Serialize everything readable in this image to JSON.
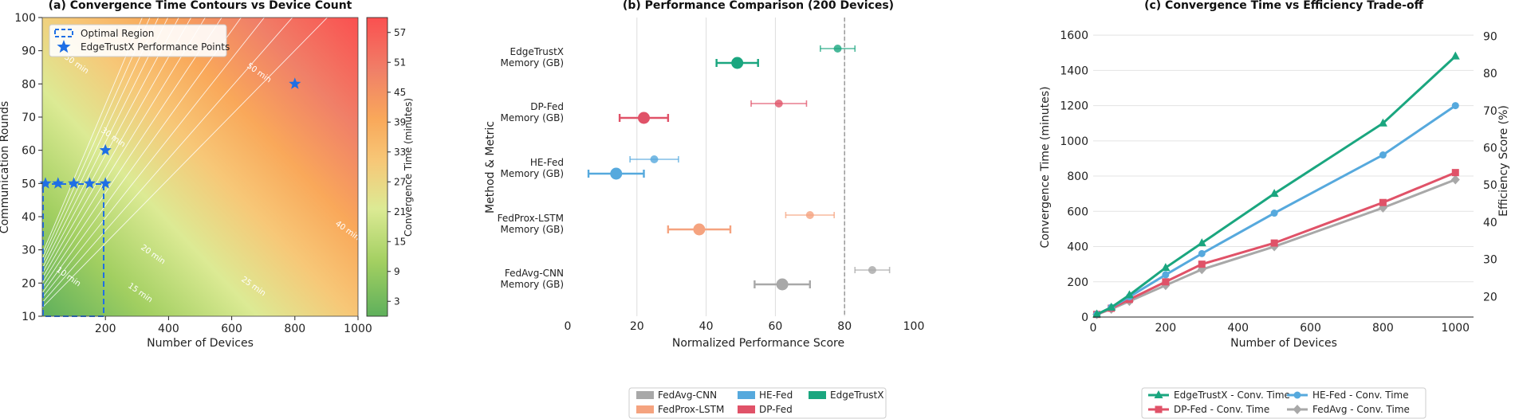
{
  "colors": {
    "edgetrustx": "#1aa67f",
    "dpfed": "#e05268",
    "hefed": "#56a9dd",
    "fedprox": "#f5a37f",
    "fedavg": "#a8a8a8",
    "star": "#1f6fe5"
  },
  "chart_data": [
    {
      "type": "heatmap",
      "title": "(a) Convergence Time Contours vs Device Count",
      "xlabel": "Number of Devices",
      "ylabel": "Communication Rounds",
      "xlim": [
        0,
        1000
      ],
      "ylim": [
        10,
        100
      ],
      "xticks": [
        "200",
        "400",
        "600",
        "800",
        "1000"
      ],
      "yticks": [
        "10",
        "20",
        "30",
        "40",
        "50",
        "60",
        "70",
        "80",
        "90",
        "100"
      ],
      "colorbar": {
        "label": "Convergence Time (minutes)",
        "ticks": [
          "3",
          "9",
          "15",
          "21",
          "27",
          "33",
          "39",
          "45",
          "51",
          "57"
        ],
        "range": [
          0,
          60
        ]
      },
      "contour_labels": [
        "10 min",
        "15 min",
        "20 min",
        "25 min",
        "30 min",
        "40 min",
        "50 min",
        "50 min"
      ],
      "legend": {
        "region": "Optimal Region",
        "points": "EdgeTrustX Performance Points"
      },
      "optimal_region": {
        "x": [
          0,
          200
        ],
        "y": [
          10,
          50
        ]
      },
      "points": [
        {
          "x": 10,
          "y": 50
        },
        {
          "x": 50,
          "y": 50
        },
        {
          "x": 100,
          "y": 50
        },
        {
          "x": 150,
          "y": 50
        },
        {
          "x": 200,
          "y": 50
        },
        {
          "x": 200,
          "y": 60
        },
        {
          "x": 800,
          "y": 80
        }
      ]
    },
    {
      "type": "scatter",
      "title": "(b) Performance Comparison (200 Devices)",
      "xlabel": "Normalized Performance Score",
      "ylabel": "Method & Metric",
      "xlim": [
        0,
        100
      ],
      "xticks": [
        "0",
        "20",
        "40",
        "60",
        "80",
        "100"
      ],
      "reference_line": 80,
      "rows": [
        {
          "label1": "EdgeTrustX",
          "label2": "Memory (GB)",
          "key": "edgetrustx",
          "big": {
            "x": 49,
            "err": 6
          },
          "small": {
            "x": 78,
            "err": 5
          }
        },
        {
          "label1": "DP-Fed",
          "label2": "Memory (GB)",
          "key": "dpfed",
          "big": {
            "x": 22,
            "err": 7
          },
          "small": {
            "x": 61,
            "err": 8
          }
        },
        {
          "label1": "HE-Fed",
          "label2": "Memory (GB)",
          "key": "hefed",
          "big": {
            "x": 14,
            "err": 8
          },
          "small": {
            "x": 25,
            "err": 7
          }
        },
        {
          "label1": "FedProx-LSTM",
          "label2": "Memory (GB)",
          "key": "fedprox",
          "big": {
            "x": 38,
            "err": 9
          },
          "small": {
            "x": 70,
            "err": 7
          }
        },
        {
          "label1": "FedAvg-CNN",
          "label2": "Memory (GB)",
          "key": "fedavg",
          "big": {
            "x": 62,
            "err": 8
          },
          "small": {
            "x": 88,
            "err": 5
          }
        }
      ],
      "legend": [
        {
          "label": "FedAvg-CNN",
          "key": "fedavg"
        },
        {
          "label": "FedProx-LSTM",
          "key": "fedprox"
        },
        {
          "label": "HE-Fed",
          "key": "hefed"
        },
        {
          "label": "DP-Fed",
          "key": "dpfed"
        },
        {
          "label": "EdgeTrustX",
          "key": "edgetrustx"
        }
      ]
    },
    {
      "type": "line",
      "title": "(c) Convergence Time vs Efficiency Trade-off",
      "xlabel": "Number of Devices",
      "ylabel": "Convergence Time (minutes)",
      "y2label": "Efficiency Score (%)",
      "xlim": [
        0,
        1050
      ],
      "ylim": [
        0,
        1700
      ],
      "y2lim": [
        14.5,
        95
      ],
      "xticks": [
        "0",
        "200",
        "400",
        "600",
        "800",
        "1000"
      ],
      "yticks": [
        "0",
        "200",
        "400",
        "600",
        "800",
        "1000",
        "1200",
        "1400",
        "1600"
      ],
      "y2ticks": [
        "20",
        "30",
        "40",
        "50",
        "60",
        "70",
        "80",
        "90"
      ],
      "x": [
        10,
        50,
        100,
        200,
        300,
        500,
        800,
        1000
      ],
      "series": [
        {
          "name": "EdgeTrustX - Conv. Time",
          "key": "edgetrustx",
          "marker": "triangle",
          "values": [
            15,
            55,
            125,
            280,
            420,
            700,
            1100,
            1480
          ]
        },
        {
          "name": "HE-Fed - Conv. Time",
          "key": "hefed",
          "marker": "circle",
          "values": [
            15,
            55,
            115,
            240,
            360,
            590,
            920,
            1200
          ]
        },
        {
          "name": "DP-Fed - Conv. Time",
          "key": "dpfed",
          "marker": "square",
          "values": [
            15,
            50,
            100,
            200,
            300,
            420,
            650,
            820
          ]
        },
        {
          "name": "FedAvg - Conv. Time",
          "key": "fedavg",
          "marker": "diamond",
          "values": [
            15,
            45,
            90,
            180,
            270,
            400,
            620,
            780
          ]
        }
      ]
    }
  ]
}
